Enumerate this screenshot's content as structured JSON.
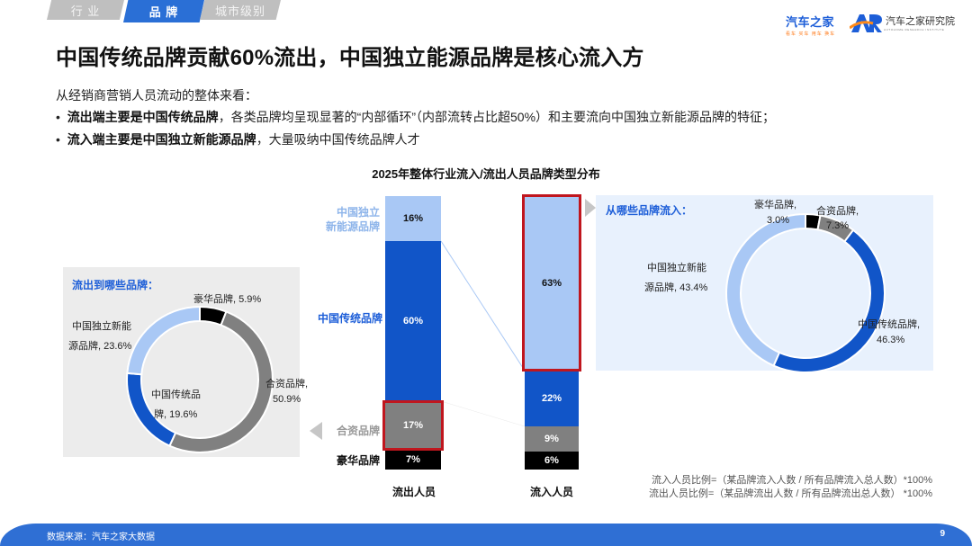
{
  "tabs": [
    {
      "label": "行 业",
      "active": false
    },
    {
      "label": "品 牌",
      "active": true
    },
    {
      "label": "城市级别",
      "active": false
    }
  ],
  "logos": {
    "autohome": {
      "name": "汽车之家",
      "slogan": "看车 买车 用车 换车"
    },
    "research": {
      "mark": "AR",
      "name": "汽车之家研究院",
      "sub": "AUTOHOME RESEARCH INSTITUTE"
    }
  },
  "title": "中国传统品牌贡献60%流出，中国独立能源品牌是核心流入方",
  "intro": "从经销商营销人员流动的整体来看：",
  "bullets": [
    {
      "bold": "流出端主要是中国传统品牌",
      "rest": "，各类品牌均呈现显著的“内部循环”（内部流转占比超50%）和主要流向中国独立新能源品牌的特征；"
    },
    {
      "bold": "流入端主要是中国独立新能源品牌",
      "rest": "，大量吸纳中国传统品牌人才"
    }
  ],
  "chart_title": "2025年整体行业流入/流出人员品牌类型分布",
  "bar_labels": {
    "independent_nev_line1": "中国独立",
    "independent_nev_line2": "新能源品牌",
    "traditional": "中国传统品牌",
    "joint_venture": "合资品牌",
    "luxury": "豪华品牌"
  },
  "columns": {
    "outflow": "流出人员",
    "inflow": "流入人员"
  },
  "left_panel": {
    "title": "流出到哪些品牌：",
    "labels": {
      "luxury": "豪华品牌, 5.9%",
      "nev_line1": "中国独立新能",
      "nev_line2": "源品牌, 23.6%",
      "trad_line1": "中国传统品",
      "trad_line2": "牌, 19.6%",
      "jv_line1": "合资品牌,",
      "jv_line2": "50.9%"
    }
  },
  "right_panel": {
    "title": "从哪些品牌流入：",
    "labels": {
      "luxury_line1": "豪华品牌,",
      "luxury_line2": "3.0%",
      "jv_line1": "合资品牌,",
      "jv_line2": "7.3%",
      "nev_line1": "中国独立新能",
      "nev_line2": "源品牌, 43.4%",
      "trad_line1": "中国传统品牌,",
      "trad_line2": "46.3%"
    }
  },
  "formulas": [
    "流入人员比例=（某品牌流入人数 / 所有品牌流入总人数）*100%",
    "流出人员比例=（某品牌流出人数 / 所有品牌流出总人数） *100%"
  ],
  "footer": {
    "source": "数据来源：汽车之家大数据",
    "page": "9"
  },
  "colors": {
    "nev": "#a9c8f5",
    "traditional": "#1155c8",
    "jv": "#808080",
    "luxury": "#000000",
    "accent": "#2a6fd6",
    "highlight": "#c0161e"
  },
  "chart_data": [
    {
      "type": "bar",
      "title": "2025年整体行业流入/流出人员品牌类型分布",
      "stacked": true,
      "categories": [
        "流出人员",
        "流入人员"
      ],
      "series": [
        {
          "name": "中国独立新能源品牌",
          "values": [
            16,
            63
          ],
          "labels": [
            "16%",
            "63%"
          ]
        },
        {
          "name": "中国传统品牌",
          "values": [
            60,
            22
          ],
          "labels": [
            "60%",
            "22%"
          ]
        },
        {
          "name": "合资品牌",
          "values": [
            17,
            9
          ],
          "labels": [
            "17%",
            "9%"
          ]
        },
        {
          "name": "豪华品牌",
          "values": [
            7,
            6
          ],
          "labels": [
            "7%",
            "6%"
          ]
        }
      ],
      "ylim": [
        0,
        100
      ]
    },
    {
      "type": "pie",
      "donut": true,
      "title": "流出到哪些品牌：",
      "categories": [
        "豪华品牌",
        "合资品牌",
        "中国传统品牌",
        "中国独立新能源品牌"
      ],
      "values": [
        5.9,
        50.9,
        19.6,
        23.6
      ]
    },
    {
      "type": "pie",
      "donut": true,
      "title": "从哪些品牌流入：",
      "categories": [
        "豪华品牌",
        "合资品牌",
        "中国传统品牌",
        "中国独立新能源品牌"
      ],
      "values": [
        3.0,
        7.3,
        46.3,
        43.4
      ]
    }
  ]
}
